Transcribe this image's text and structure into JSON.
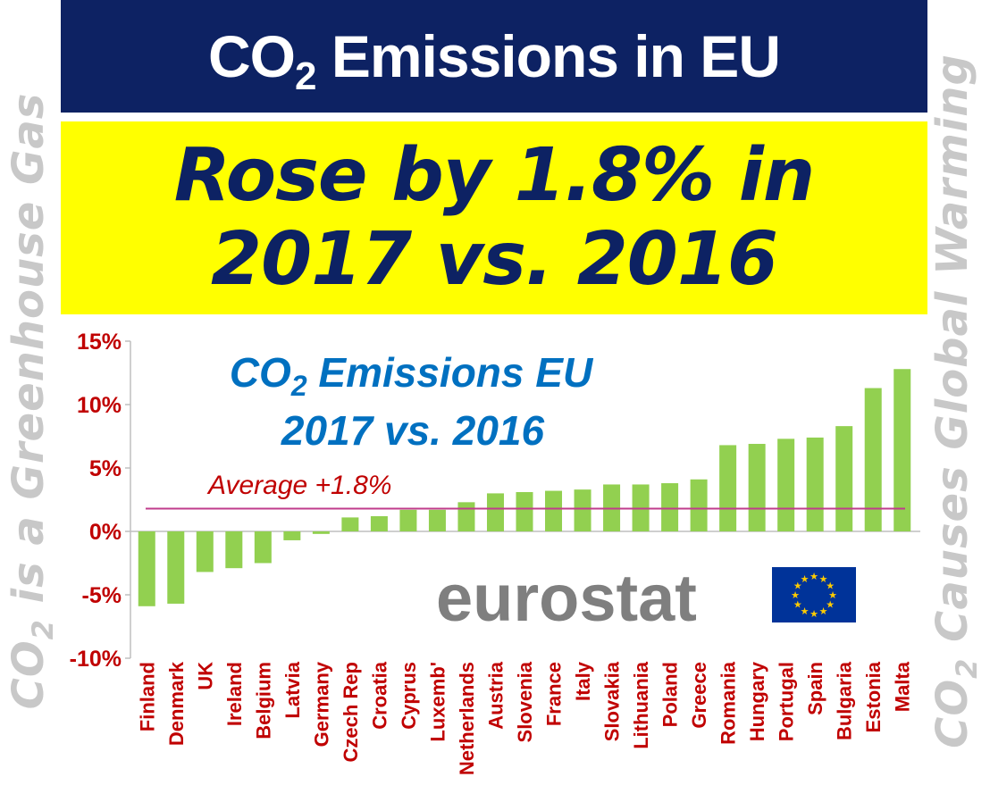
{
  "title": {
    "pre": "CO",
    "sub": "2",
    "post": " Emissions in EU"
  },
  "headline": {
    "line1": "Rose by 1.8% in",
    "line2": "2017 vs. 2016"
  },
  "side_left": {
    "pre": "CO",
    "sub": "2",
    "post": " is a Greenhouse Gas"
  },
  "side_right": {
    "pre": "CO",
    "sub": "2",
    "post": " Causes Global Warming"
  },
  "chart_data": {
    "type": "bar",
    "title_pre": "CO",
    "title_sub": "2",
    "title_post": " Emissions EU",
    "subtitle": "2017 vs. 2016",
    "categories": [
      "Finland",
      "Denmark",
      "UK",
      "Ireland",
      "Belgium",
      "Latvia",
      "Germany",
      "Czech Rep",
      "Croatia",
      "Cyprus",
      "Luxemb'",
      "Netherlands",
      "Austria",
      "Slovenia",
      "France",
      "Italy",
      "Slovakia",
      "Lithuania",
      "Poland",
      "Greece",
      "Romania",
      "Hungary",
      "Portugal",
      "Spain",
      "Bulgaria",
      "Estonia",
      "Malta"
    ],
    "values": [
      -5.9,
      -5.7,
      -3.2,
      -2.9,
      -2.5,
      -0.7,
      -0.2,
      1.1,
      1.2,
      1.7,
      1.7,
      2.3,
      3.0,
      3.1,
      3.2,
      3.3,
      3.7,
      3.7,
      3.8,
      4.1,
      6.8,
      6.9,
      7.3,
      7.4,
      8.3,
      11.3,
      12.8
    ],
    "yticks": [
      "15%",
      "10%",
      "5%",
      "0%",
      "-5%",
      "-10%"
    ],
    "ylim": [
      -10,
      15
    ],
    "average": {
      "value": 1.8,
      "label": "Average +1.8%"
    },
    "source_logo": "eurostat",
    "colors": {
      "bar": "#92d050",
      "average_line": "#c03c8c",
      "tick_label": "#c00000",
      "title": "#0070c0"
    }
  }
}
